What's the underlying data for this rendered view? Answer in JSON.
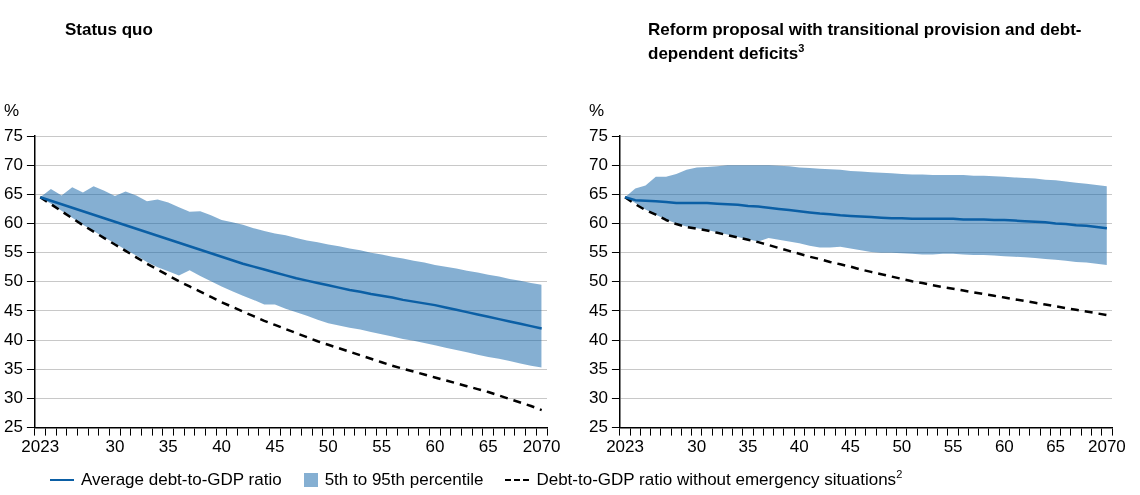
{
  "chart_data": [
    {
      "type": "line",
      "title": "Status quo",
      "ylabel": "%",
      "annotations": [
        "5th to 95th percentile"
      ],
      "categories": [
        "2023",
        null,
        null,
        null,
        null,
        null,
        null,
        "30",
        null,
        null,
        null,
        null,
        "35",
        null,
        null,
        null,
        null,
        "40",
        null,
        null,
        null,
        null,
        "45",
        null,
        null,
        null,
        null,
        "50",
        null,
        null,
        null,
        null,
        "55",
        null,
        null,
        null,
        null,
        "60",
        null,
        null,
        null,
        null,
        "65",
        null,
        null,
        null,
        null,
        "2070"
      ],
      "series": [
        {
          "name": "Average debt-to-GDP ratio",
          "color": "#0b5fa5",
          "values": [
            64.5,
            63.9,
            63.3,
            62.7,
            62.1,
            61.5,
            60.9,
            60.3,
            59.7,
            59.1,
            58.5,
            57.9,
            57.3,
            56.7,
            56.1,
            55.5,
            54.9,
            54.3,
            53.7,
            53.1,
            52.6,
            52.1,
            51.6,
            51.1,
            50.6,
            50.2,
            49.8,
            49.4,
            49.0,
            48.6,
            48.3,
            47.9,
            47.6,
            47.3,
            46.9,
            46.6,
            46.3,
            46.0,
            45.6,
            45.2,
            44.8,
            44.4,
            44.0,
            43.6,
            43.2,
            42.8,
            42.4,
            42.0
          ],
          "upper": [
            64.5,
            65.9,
            64.8,
            66.2,
            65.3,
            66.4,
            65.6,
            64.7,
            65.5,
            64.8,
            63.8,
            64.1,
            63.6,
            62.8,
            62.0,
            62.1,
            61.4,
            60.6,
            60.2,
            59.8,
            59.2,
            58.7,
            58.3,
            58.0,
            57.5,
            57.1,
            56.8,
            56.4,
            56.1,
            55.7,
            55.4,
            55.0,
            54.7,
            54.3,
            54.0,
            53.6,
            53.3,
            52.9,
            52.6,
            52.3,
            51.9,
            51.6,
            51.2,
            50.9,
            50.5,
            50.2,
            49.8,
            49.5
          ],
          "lower": [
            64.5,
            63.4,
            62.2,
            61.0,
            59.8,
            58.7,
            57.6,
            56.6,
            55.5,
            54.5,
            53.4,
            52.5,
            51.8,
            51.1,
            52.0,
            51.0,
            50.1,
            49.2,
            48.4,
            47.6,
            46.9,
            46.1,
            46.1,
            45.4,
            44.8,
            44.2,
            43.5,
            42.9,
            42.5,
            42.1,
            41.8,
            41.4,
            41.0,
            40.6,
            40.2,
            39.9,
            39.5,
            39.1,
            38.7,
            38.3,
            37.9,
            37.5,
            37.1,
            36.8,
            36.4,
            36.0,
            35.6,
            35.3
          ]
        },
        {
          "name": "Debt-to-GDP ratio without emergency situations$^{2}$",
          "color": "#000000",
          "line_style": "dashed",
          "values": [
            64.5,
            63.3,
            62.1,
            60.9,
            59.7,
            58.6,
            57.5,
            56.4,
            55.3,
            54.2,
            53.1,
            52.1,
            51.1,
            50.1,
            49.2,
            48.3,
            47.4,
            46.5,
            45.7,
            44.9,
            44.1,
            43.3,
            42.6,
            41.9,
            41.2,
            40.5,
            39.8,
            39.2,
            38.6,
            38.0,
            37.4,
            36.8,
            36.2,
            35.6,
            35.1,
            34.6,
            34.1,
            33.6,
            33.1,
            32.6,
            32.1,
            31.6,
            31.1,
            30.5,
            29.9,
            29.3,
            28.7,
            28.0
          ]
        }
      ],
      "ylim": [
        25,
        75
      ],
      "yticks": [
        25,
        30,
        35,
        40,
        45,
        50,
        55,
        60,
        65,
        70,
        75
      ],
      "grid": "y",
      "legend": "bottom",
      "marker": "none"
    },
    {
      "type": "line",
      "title": "Reform proposal with transitional provision and debt-dependent deficits$^{3}$",
      "ylabel": "%",
      "categories": [
        "2023",
        null,
        null,
        null,
        null,
        null,
        null,
        "30",
        null,
        null,
        null,
        null,
        "35",
        null,
        null,
        null,
        null,
        "40",
        null,
        null,
        null,
        null,
        "45",
        null,
        null,
        null,
        null,
        "50",
        null,
        null,
        null,
        null,
        "55",
        null,
        null,
        null,
        null,
        "60",
        null,
        null,
        null,
        null,
        "65",
        null,
        null,
        null,
        null,
        "2070"
      ],
      "series": [
        {
          "color": "#0b5fa5",
          "values": [
            64.5,
            64.0,
            63.9,
            63.8,
            63.7,
            63.5,
            63.5,
            63.5,
            63.5,
            63.4,
            63.3,
            63.2,
            63.0,
            62.9,
            62.7,
            62.5,
            62.3,
            62.1,
            61.9,
            61.7,
            61.6,
            61.4,
            61.3,
            61.2,
            61.1,
            61.0,
            60.9,
            60.9,
            60.8,
            60.8,
            60.8,
            60.8,
            60.8,
            60.7,
            60.7,
            60.7,
            60.6,
            60.6,
            60.5,
            60.4,
            60.3,
            60.2,
            60.0,
            59.9,
            59.7,
            59.6,
            59.4,
            59.2
          ],
          "upper": [
            64.5,
            66.0,
            66.5,
            68.0,
            68.0,
            68.5,
            69.2,
            69.6,
            69.7,
            69.8,
            70.0,
            70.0,
            70.0,
            70.0,
            70.0,
            69.9,
            69.8,
            69.6,
            69.5,
            69.4,
            69.3,
            69.2,
            69.0,
            68.9,
            68.8,
            68.7,
            68.6,
            68.5,
            68.4,
            68.4,
            68.3,
            68.3,
            68.3,
            68.3,
            68.2,
            68.2,
            68.1,
            68.0,
            67.9,
            67.8,
            67.7,
            67.5,
            67.4,
            67.2,
            67.0,
            66.8,
            66.6,
            66.4
          ],
          "lower": [
            64.5,
            63.5,
            62.4,
            61.5,
            60.7,
            60.0,
            59.5,
            59.2,
            58.9,
            58.5,
            58.1,
            57.7,
            57.3,
            56.9,
            57.5,
            57.2,
            56.9,
            56.6,
            56.2,
            55.9,
            55.9,
            56.0,
            55.7,
            55.4,
            55.1,
            55.0,
            55.0,
            54.9,
            54.8,
            54.7,
            54.7,
            54.8,
            54.8,
            54.7,
            54.6,
            54.6,
            54.5,
            54.4,
            54.3,
            54.2,
            54.1,
            53.9,
            53.8,
            53.6,
            53.4,
            53.3,
            53.1,
            52.9
          ]
        },
        {
          "color": "#000000",
          "line_style": "dashed",
          "values": [
            64.5,
            63.3,
            62.3,
            61.5,
            60.6,
            59.9,
            59.4,
            59.1,
            58.8,
            58.4,
            58.0,
            57.6,
            57.2,
            56.8,
            56.3,
            55.8,
            55.3,
            54.8,
            54.3,
            53.9,
            53.4,
            53.0,
            52.6,
            52.1,
            51.7,
            51.3,
            50.9,
            50.5,
            50.1,
            49.8,
            49.4,
            49.1,
            48.8,
            48.5,
            48.2,
            47.9,
            47.6,
            47.3,
            47.0,
            46.7,
            46.4,
            46.1,
            45.8,
            45.5,
            45.2,
            44.9,
            44.6,
            44.3
          ]
        }
      ],
      "ylim": [
        25,
        75
      ],
      "yticks": [
        25,
        30,
        35,
        40,
        45,
        50,
        55,
        60,
        65,
        70,
        75
      ],
      "grid": "y",
      "marker": "none"
    }
  ]
}
